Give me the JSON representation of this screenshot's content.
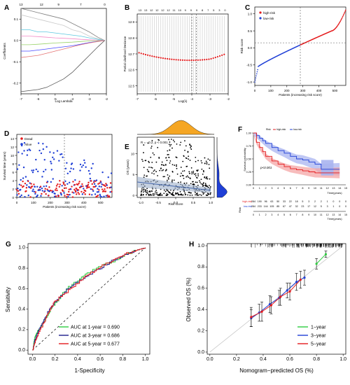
{
  "figure": {
    "panels": {
      "A": {
        "letter": "A",
        "xlabel": "Log Lambda",
        "ylabel": "Coefficients",
        "top_ticks": [
          "13",
          "12",
          "9",
          "7",
          "0"
        ],
        "x_ticks": [
          "-7",
          "-6",
          "-5",
          "-4",
          "-3",
          "-2"
        ],
        "y_ticks": [
          "-0.2",
          "-0.1",
          "0.0",
          "0.1"
        ]
      },
      "B": {
        "letter": "B",
        "xlabel": "Log(λ)",
        "ylabel": "Partial Likelihood Deviance",
        "top_ticks": [
          "13",
          "13",
          "12",
          "12",
          "12",
          "12",
          "11",
          "10",
          "9",
          "9",
          "9",
          "8",
          "7",
          "5",
          "3",
          "0"
        ],
        "x_ticks": [
          "-7",
          "-6",
          "-5",
          "-4",
          "-3",
          "-2"
        ],
        "y_ticks": [
          "12.5",
          "12.6",
          "12.7",
          "12.8",
          "12.9"
        ]
      },
      "C": {
        "letter": "C",
        "xlabel": "Patients (increasing risk score)",
        "ylabel": "Risk score",
        "legend": [
          "high-risk",
          "low-risk"
        ],
        "x_ticks": [
          "0",
          "100",
          "200",
          "300",
          "400",
          "500"
        ],
        "y_ticks": [
          "-1.0",
          "-0.5",
          "0.0",
          "0.5",
          "1.0"
        ]
      },
      "D": {
        "letter": "D",
        "xlabel": "Patients (increasing risk socre)",
        "ylabel": "Survival time (years)",
        "legend": [
          "Dead",
          "Alive"
        ],
        "x_ticks": [
          "0",
          "100",
          "200",
          "300",
          "400",
          "500"
        ],
        "y_ticks": [
          "0",
          "2",
          "4",
          "6",
          "8",
          "10",
          "12",
          "14"
        ]
      },
      "E": {
        "letter": "E",
        "xlabel": "Risk score",
        "ylabel": "OS (years)",
        "annotation": "R = - 0.2, p < 0.001",
        "x_ticks": [
          "-1.0",
          "-0.5",
          "0.0",
          "0.5",
          "1.0"
        ],
        "y_ticks": [
          "0",
          "5",
          "10"
        ]
      },
      "F": {
        "letter": "F",
        "ylabel": "Survival probability",
        "xlabel": "Time(years)",
        "legend_title": "Risk",
        "legend": [
          "high-risk",
          "low-risk"
        ],
        "pvalue": "p<0.001",
        "risk_title": "Risk",
        "x_ticks": [
          "0",
          "1",
          "2",
          "3",
          "4",
          "5",
          "6",
          "7",
          "8",
          "9",
          "10",
          "11",
          "12",
          "13",
          "14",
          "15"
        ],
        "y_ticks": [
          "0.00",
          "0.25",
          "0.50",
          "0.75",
          "1.00"
        ],
        "table_rows": [
          {
            "label": "high-risk",
            "values": [
              "284",
              "190",
              "96",
              "63",
              "50",
              "33",
              "22",
              "18",
              "5",
              "3",
              "2",
              "2",
              "1",
              "0",
              "0",
              "0"
            ]
          },
          {
            "label": "low-risk",
            "values": [
              "284",
              "233",
              "144",
              "105",
              "85",
              "67",
              "47",
              "32",
              "23",
              "17",
              "12",
              "5",
              "3",
              "1",
              "0",
              "0"
            ]
          }
        ],
        "table_xlabel": "Time(years)"
      },
      "G": {
        "letter": "G",
        "xlabel": "1-Specificity",
        "ylabel": "Sensitivity",
        "x_ticks": [
          "0.0",
          "0.2",
          "0.4",
          "0.6",
          "0.8",
          "1.0"
        ],
        "y_ticks": [
          "0.0",
          "0.2",
          "0.4",
          "0.6",
          "0.8",
          "1.0"
        ],
        "legend": [
          "AUC at 1-year = 0.690",
          "AUC at 3-year = 0.686",
          "AUC at 5-year = 0.677"
        ]
      },
      "H": {
        "letter": "H",
        "xlabel": "Nomogram−predicted OS (%)",
        "ylabel": "Observed OS (%)",
        "x_ticks": [
          "0.0",
          "0.2",
          "0.4",
          "0.6",
          "0.8",
          "1.0"
        ],
        "y_ticks": [
          "0.0",
          "0.2",
          "0.4",
          "0.6",
          "0.8",
          "1.0"
        ],
        "legend": [
          "1−year",
          "3−year",
          "5−year"
        ]
      }
    }
  },
  "colors": {
    "red": "#e41a1c",
    "blue": "#1f3fd6",
    "green": "#2ecc40",
    "orange": "#f5a623",
    "navy": "#1c1c8c",
    "shade_red": "#f4a6a6",
    "shade_blue": "#a9b4f0"
  },
  "chart_data": [
    {
      "panel": "A",
      "type": "line",
      "title": "",
      "xlabel": "Log Lambda",
      "ylabel": "Coefficients",
      "xlim": [
        -7,
        -2
      ],
      "ylim": [
        -0.25,
        0.15
      ],
      "x": [
        -7,
        -6.5,
        -6,
        -5.5,
        -5,
        -4.5,
        -4,
        -3.5,
        -3,
        -2.5,
        -2.1
      ],
      "series": [
        {
          "values": [
            0.15,
            0.14,
            0.13,
            0.12,
            0.11,
            0.1,
            0.08,
            0.06,
            0.04,
            0.015,
            0
          ]
        },
        {
          "values": [
            0.12,
            0.11,
            0.1,
            0.09,
            0.08,
            0.07,
            0.05,
            0.04,
            0.02,
            0.008,
            0
          ]
        },
        {
          "values": [
            0.05,
            0.05,
            0.04,
            0.04,
            0.035,
            0.03,
            0.025,
            0.02,
            0.012,
            0.005,
            0
          ]
        },
        {
          "values": [
            0.02,
            0.02,
            0.018,
            0.015,
            0.012,
            0.01,
            0.008,
            0.005,
            0.003,
            0.001,
            0
          ]
        },
        {
          "values": [
            -0.02,
            -0.02,
            -0.018,
            -0.015,
            -0.012,
            -0.01,
            -0.008,
            -0.005,
            -0.002,
            -0.001,
            0
          ]
        },
        {
          "values": [
            -0.05,
            -0.05,
            -0.045,
            -0.04,
            -0.035,
            -0.03,
            -0.025,
            -0.018,
            -0.01,
            -0.004,
            0
          ]
        },
        {
          "values": [
            -0.08,
            -0.075,
            -0.07,
            -0.06,
            -0.05,
            -0.04,
            -0.03,
            -0.02,
            -0.012,
            -0.005,
            0
          ]
        },
        {
          "values": [
            -0.24,
            -0.235,
            -0.23,
            -0.22,
            -0.2,
            -0.18,
            -0.15,
            -0.11,
            -0.07,
            -0.03,
            0
          ]
        }
      ]
    },
    {
      "panel": "B",
      "type": "scatter",
      "title": "",
      "xlabel": "Log(λ)",
      "ylabel": "Partial Likelihood Deviance",
      "xlim": [
        -7,
        -2
      ],
      "ylim": [
        12.45,
        12.95
      ],
      "x": [
        -6.8,
        -6.4,
        -6.0,
        -5.6,
        -5.2,
        -4.8,
        -4.4,
        -4.0,
        -3.6,
        -3.2,
        -2.8,
        -2.4,
        -2.1
      ],
      "values": [
        12.72,
        12.71,
        12.7,
        12.69,
        12.68,
        12.67,
        12.665,
        12.66,
        12.665,
        12.68,
        12.72,
        12.77,
        12.8
      ],
      "vlines": [
        -3.75,
        -4.0
      ]
    },
    {
      "panel": "C",
      "type": "scatter",
      "title": "",
      "xlabel": "Patients (increasing risk score)",
      "ylabel": "Risk score",
      "xlim": [
        0,
        568
      ],
      "ylim": [
        -1.1,
        1.2
      ],
      "cutoff_index": 284,
      "x": [
        0,
        10,
        30,
        60,
        100,
        150,
        200,
        250,
        284,
        320,
        360,
        400,
        450,
        500,
        540,
        568
      ],
      "values": [
        -1.0,
        -0.6,
        -0.35,
        -0.2,
        -0.1,
        -0.02,
        0.05,
        0.12,
        0.15,
        0.2,
        0.27,
        0.35,
        0.47,
        0.65,
        0.85,
        1.12
      ]
    },
    {
      "panel": "D",
      "type": "scatter",
      "title": "",
      "xlabel": "Patients (increasing risk socre)",
      "ylabel": "Survival time (years)",
      "xlim": [
        0,
        568
      ],
      "ylim": [
        0,
        15
      ],
      "series": [
        {
          "name": "Dead"
        },
        {
          "name": "Alive"
        }
      ]
    },
    {
      "panel": "E",
      "type": "scatter",
      "title": "",
      "xlabel": "Risk score",
      "ylabel": "OS (years)",
      "xlim": [
        -1.1,
        1.1
      ],
      "ylim": [
        -0.5,
        14
      ],
      "regression": {
        "x": [
          -1.1,
          1.0
        ],
        "y": [
          3.2,
          1.2
        ]
      }
    },
    {
      "panel": "F",
      "type": "line",
      "title": "",
      "xlabel": "Time(years)",
      "ylabel": "Survival probability",
      "xlim": [
        0,
        15
      ],
      "ylim": [
        0,
        1
      ],
      "series": [
        {
          "name": "high-risk",
          "x": [
            0,
            0.5,
            1,
            1.5,
            2,
            3,
            4,
            5,
            6,
            7,
            8,
            9,
            10,
            11,
            12,
            13,
            14
          ],
          "values": [
            1.0,
            0.82,
            0.72,
            0.64,
            0.55,
            0.46,
            0.4,
            0.35,
            0.31,
            0.29,
            0.27,
            0.25,
            0.23,
            0.23,
            0.23,
            0.23,
            0.23
          ]
        },
        {
          "name": "low-risk",
          "x": [
            0,
            0.5,
            1,
            1.5,
            2,
            3,
            4,
            5,
            6,
            7,
            8,
            9,
            10,
            11,
            12,
            13,
            14
          ],
          "values": [
            1.0,
            0.95,
            0.9,
            0.85,
            0.8,
            0.72,
            0.66,
            0.61,
            0.55,
            0.5,
            0.48,
            0.44,
            0.4,
            0.3,
            0.3,
            0.3,
            0.3
          ]
        }
      ]
    },
    {
      "panel": "G",
      "type": "line",
      "title": "",
      "xlabel": "1-Specificity",
      "ylabel": "Sensitivity",
      "xlim": [
        0,
        1
      ],
      "ylim": [
        0,
        1
      ],
      "series": [
        {
          "name": "AUC at 1-year = 0.690",
          "x": [
            0,
            0.02,
            0.05,
            0.1,
            0.15,
            0.2,
            0.3,
            0.4,
            0.5,
            0.6,
            0.7,
            0.8,
            0.9,
            1.0
          ],
          "values": [
            0,
            0.12,
            0.2,
            0.28,
            0.38,
            0.46,
            0.6,
            0.68,
            0.76,
            0.82,
            0.86,
            0.92,
            0.97,
            1.0
          ]
        },
        {
          "name": "AUC at 3-year = 0.686",
          "x": [
            0,
            0.02,
            0.05,
            0.1,
            0.15,
            0.2,
            0.3,
            0.4,
            0.5,
            0.6,
            0.7,
            0.8,
            0.9,
            1.0
          ],
          "values": [
            0,
            0.1,
            0.18,
            0.3,
            0.4,
            0.47,
            0.59,
            0.67,
            0.74,
            0.8,
            0.87,
            0.92,
            0.97,
            1.0
          ]
        },
        {
          "name": "AUC at 5-year = 0.677",
          "x": [
            0,
            0.02,
            0.05,
            0.1,
            0.15,
            0.2,
            0.3,
            0.4,
            0.5,
            0.6,
            0.7,
            0.8,
            0.9,
            1.0
          ],
          "values": [
            0,
            0.08,
            0.16,
            0.27,
            0.39,
            0.48,
            0.57,
            0.66,
            0.74,
            0.82,
            0.87,
            0.93,
            0.97,
            1.0
          ]
        }
      ]
    },
    {
      "panel": "H",
      "type": "scatter",
      "title": "",
      "xlabel": "Nomogram−predicted OS (%)",
      "ylabel": "Observed OS (%)",
      "xlim": [
        0,
        1
      ],
      "ylim": [
        0,
        1
      ],
      "series": [
        {
          "name": "1−year",
          "x": [
            0.8,
            0.87
          ],
          "values": [
            0.83,
            0.92
          ],
          "lo": [
            0.78,
            0.89
          ],
          "hi": [
            0.88,
            0.95
          ]
        },
        {
          "name": "3−year",
          "x": [
            0.31,
            0.37,
            0.45,
            0.52,
            0.58,
            0.65,
            0.71
          ],
          "values": [
            0.32,
            0.37,
            0.45,
            0.51,
            0.58,
            0.66,
            0.7
          ],
          "lo": [
            0.24,
            0.29,
            0.37,
            0.44,
            0.51,
            0.58,
            0.63
          ],
          "hi": [
            0.4,
            0.45,
            0.53,
            0.58,
            0.65,
            0.74,
            0.77
          ]
        },
        {
          "name": "5−year",
          "x": [
            0.31,
            0.39,
            0.46,
            0.53,
            0.6,
            0.68
          ],
          "values": [
            0.33,
            0.38,
            0.44,
            0.52,
            0.57,
            0.68
          ],
          "lo": [
            0.24,
            0.29,
            0.36,
            0.44,
            0.49,
            0.6
          ],
          "hi": [
            0.42,
            0.47,
            0.52,
            0.6,
            0.65,
            0.76
          ]
        }
      ]
    }
  ]
}
